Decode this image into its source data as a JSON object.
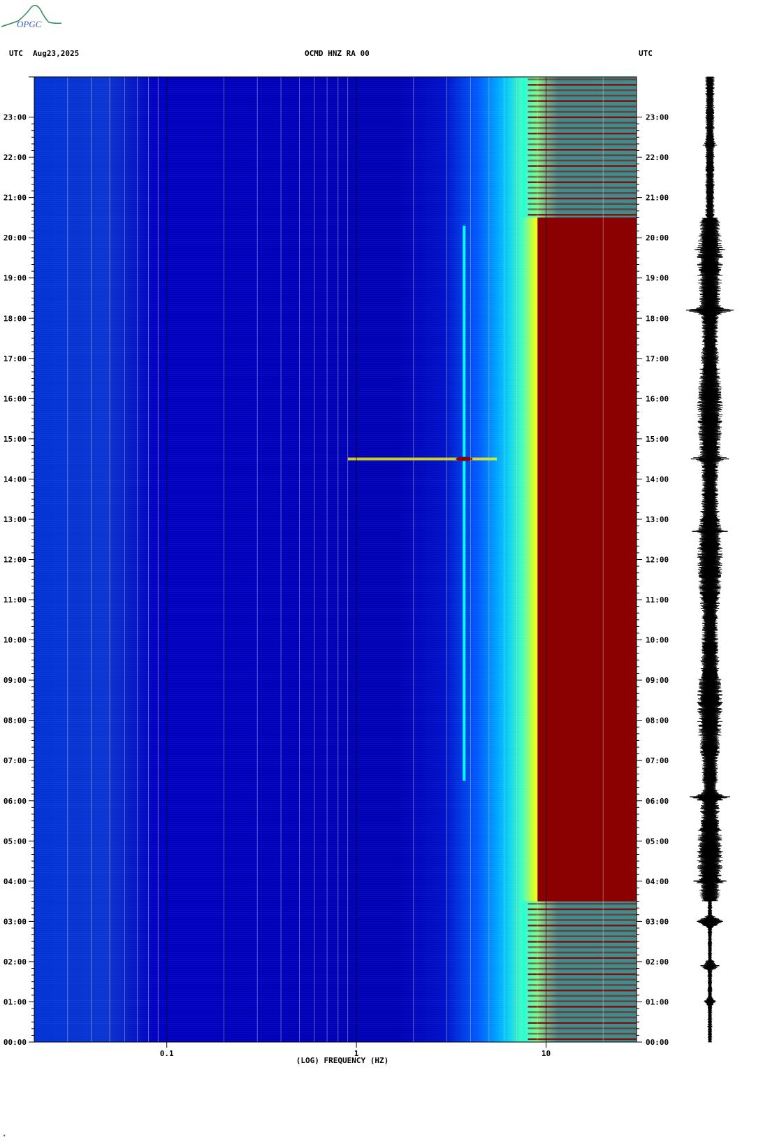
{
  "header": {
    "left_tz": "UTC",
    "date": "Aug23,2025",
    "station": "OCMD HNZ RA 00",
    "right_tz": "UTC"
  },
  "logo": {
    "text": "OPGC"
  },
  "corner_mark": "*",
  "colors": {
    "low_power": "#0000b4",
    "mid_power": "#00ffff",
    "high_power": "#ffff00",
    "max_power": "#8b0000",
    "trace": "#000000"
  },
  "chart_data": [
    {
      "type": "heatmap",
      "name": "spectrogram",
      "xlabel": "(LOG) FREQUENCY (HZ)",
      "x_scale": "log",
      "xlim": [
        0.02,
        30
      ],
      "x_ticks": [
        {
          "value": 0.1,
          "label": "0.1"
        },
        {
          "value": 1,
          "label": "1"
        },
        {
          "value": 10,
          "label": "10"
        }
      ],
      "ylim_hours": [
        0,
        24
      ],
      "y_ticks": [
        "00:00",
        "01:00",
        "02:00",
        "03:00",
        "04:00",
        "05:00",
        "06:00",
        "07:00",
        "08:00",
        "09:00",
        "10:00",
        "11:00",
        "12:00",
        "13:00",
        "14:00",
        "15:00",
        "16:00",
        "17:00",
        "18:00",
        "19:00",
        "20:00",
        "21:00",
        "22:00",
        "23:00"
      ],
      "grid": true,
      "features": [
        {
          "desc": "persistent spectral line",
          "freq_hz": 3.7,
          "hours": [
            6.5,
            20.3
          ]
        },
        {
          "desc": "broadband event",
          "freq_hz_range": [
            0.9,
            5.5
          ],
          "hour": 14.5
        },
        {
          "desc": "saturated high-frequency band",
          "freq_hz_range": [
            9,
            30
          ],
          "hours": [
            3.5,
            20.5
          ]
        }
      ]
    },
    {
      "type": "line",
      "name": "seismogram",
      "x_unit": "hour",
      "xlim": [
        0,
        24
      ],
      "bursts": [
        {
          "hour": 1.0,
          "amp": 0.25
        },
        {
          "hour": 1.9,
          "amp": 0.4
        },
        {
          "hour": 3.0,
          "amp": 0.55
        },
        {
          "hour": 4.0,
          "amp": 0.7
        },
        {
          "hour": 6.1,
          "amp": 0.85
        },
        {
          "hour": 12.7,
          "amp": 0.75
        },
        {
          "hour": 14.5,
          "amp": 0.8
        },
        {
          "hour": 18.2,
          "amp": 1.0
        },
        {
          "hour": 19.7,
          "amp": 0.65
        },
        {
          "hour": 22.3,
          "amp": 0.3
        }
      ]
    }
  ]
}
